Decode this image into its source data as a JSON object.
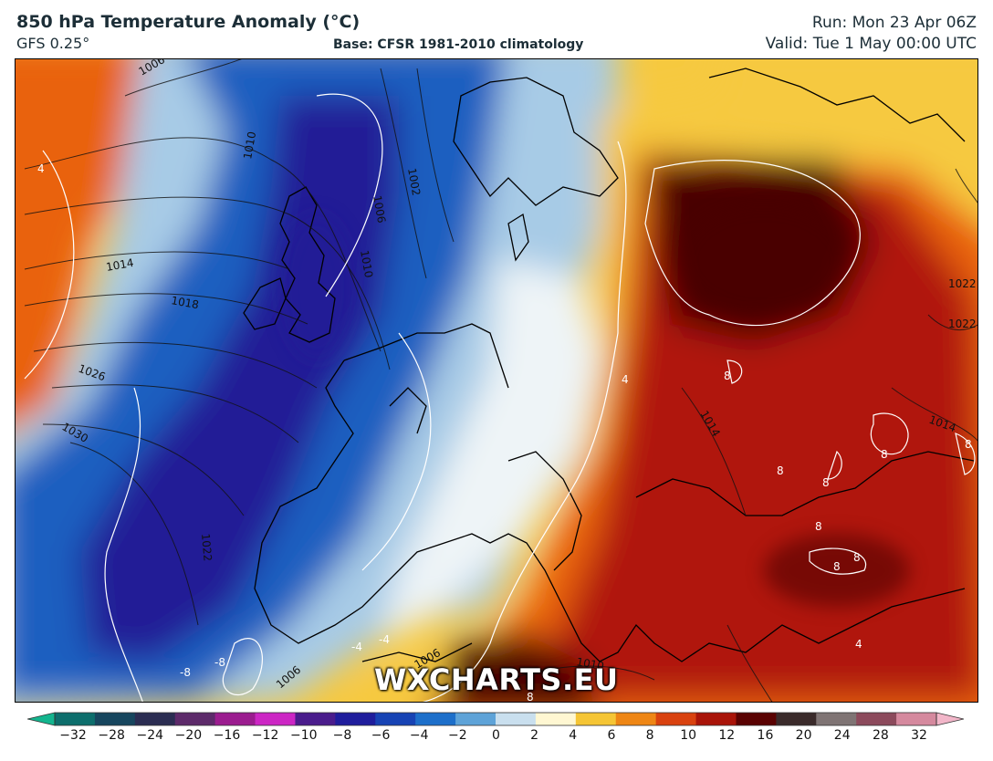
{
  "header": {
    "title": "850 hPa Temperature Anomaly (°C)",
    "model": "GFS 0.25°",
    "base": "Base: CFSR 1981-2010 climatology",
    "run": "Run: Mon 23 Apr 06Z",
    "valid": "Valid: Tue 1 May 00:00 UTC"
  },
  "watermark": "WXCHARTS.EU",
  "isobar_labels": [
    "1006",
    "1010",
    "1002",
    "1006",
    "1010",
    "1014",
    "1018",
    "1026",
    "1030",
    "1022",
    "1014",
    "1022",
    "1022",
    "1014",
    "1010",
    "1006",
    "1006"
  ],
  "anomaly_labels": [
    "4",
    "4",
    "8",
    "8",
    "8",
    "8",
    "8",
    "8",
    "8",
    "8",
    "8",
    "4",
    "-4",
    "-8",
    "-8",
    "-4"
  ],
  "colorbar": {
    "ticks": [
      "−32",
      "−28",
      "−24",
      "−20",
      "−16",
      "−12",
      "−10",
      "−8",
      "−6",
      "−4",
      "−2",
      "0",
      "2",
      "4",
      "6",
      "8",
      "10",
      "12",
      "16",
      "20",
      "24",
      "28",
      "32"
    ],
    "colors": [
      "#13b58e",
      "#0d6e6c",
      "#17465e",
      "#2b2d52",
      "#5d2a6a",
      "#9b1c8f",
      "#cc26c4",
      "#4a1c8c",
      "#1f1d9c",
      "#1743b4",
      "#1d6fca",
      "#5ea3d8",
      "#c9dfee",
      "#fff7d2",
      "#f5c535",
      "#ee8615",
      "#d9420f",
      "#a91409",
      "#5a0202",
      "#3a2a2a",
      "#7f7474",
      "#8c4a5c",
      "#d5899e",
      "#f2b6c9"
    ]
  },
  "colors": {
    "cold_deep": "#201a96",
    "cold_mid": "#1f5fc0",
    "cold_light": "#a7cbe6",
    "neutral": "#eef4f7",
    "warm_light": "#f6c940",
    "warm_mid": "#e9620f",
    "warm_deep": "#b01608",
    "warm_core": "#4a0404"
  }
}
